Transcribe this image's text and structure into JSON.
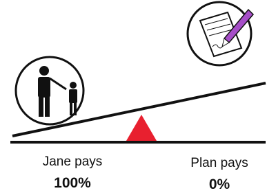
{
  "left": {
    "label": "Jane pays",
    "amount": "100%"
  },
  "right": {
    "label": "Plan pays",
    "amount": "0%"
  }
}
